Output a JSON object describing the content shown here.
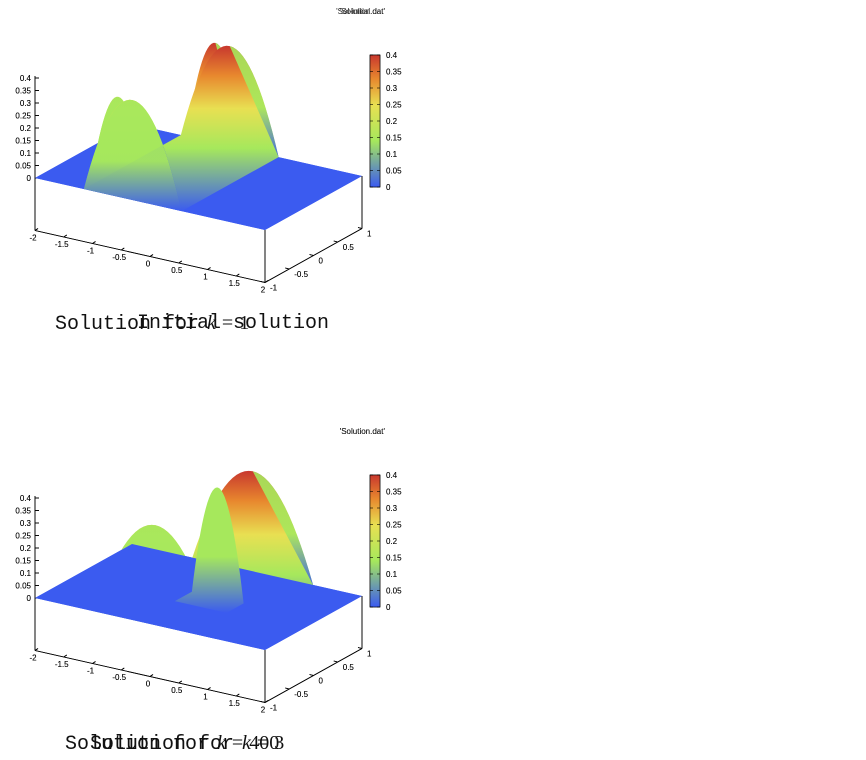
{
  "colors": {
    "blue": "#3b5bf0",
    "green": "#a6e85c",
    "yellow": "#e8e052",
    "orange": "#e8882e",
    "red": "#c8382e",
    "axis": "#000000"
  },
  "colorbar_ticks": [
    "0.4",
    "0.35",
    "0.3",
    "0.25",
    "0.2",
    "0.15",
    "0.1",
    "0.05",
    "0"
  ],
  "z_ticks": [
    "0.4",
    "0.35",
    "0.3",
    "0.25",
    "0.2",
    "0.15",
    "0.1",
    "0.05",
    "0"
  ],
  "x_ticks": [
    "-2",
    "-1.5",
    "-1",
    "-0.5",
    "0",
    "0.5",
    "1",
    "1.5",
    "2"
  ],
  "y_ticks": [
    "-1",
    "-0.5",
    "0",
    "0.5",
    "1"
  ],
  "chart_data": [
    {
      "type": "surface",
      "file_label": "'Sol-initial.dat'",
      "caption_text": "Initial solution",
      "caption_var": "",
      "caption_eq": "",
      "caption_value": "",
      "x_range": [
        -2,
        2
      ],
      "y_range": [
        -1,
        1
      ],
      "zlim": [
        0,
        0.4
      ],
      "colorbar_range": [
        0,
        0.4
      ],
      "hump": {
        "shape": "ridge",
        "x_center": -0.55,
        "half_width": 0.5,
        "peak": 0.4
      }
    },
    {
      "type": "surface",
      "file_label": "'Solution.dat'",
      "caption_text": "Solution for",
      "caption_var": "k",
      "caption_eq": "=",
      "caption_value": "1",
      "x_range": [
        -2,
        2
      ],
      "y_range": [
        -1,
        1
      ],
      "zlim": [
        0,
        0.4
      ],
      "colorbar_range": [
        0,
        0.4
      ],
      "hump": {
        "shape": "ridge",
        "x_center": -0.3,
        "half_width": 0.85,
        "peak": 0.4
      }
    },
    {
      "type": "surface",
      "file_label": "'Solution.dat'",
      "caption_text": "Solution for",
      "caption_var": "k",
      "caption_eq": "=",
      "caption_value": "3",
      "x_range": [
        -2,
        2
      ],
      "y_range": [
        -1,
        1
      ],
      "zlim": [
        0,
        0.4
      ],
      "colorbar_range": [
        0,
        0.4
      ],
      "hump": {
        "shape": "ridge",
        "x_center": 0.1,
        "half_width": 1.05,
        "peak": 0.4
      }
    },
    {
      "type": "surface",
      "file_label": "'Solution.dat'",
      "caption_text": "Solution for",
      "caption_var": "k",
      "caption_eq": "=",
      "caption_value": "400",
      "x_range": [
        -2,
        2
      ],
      "y_range": [
        -1,
        1
      ],
      "zlim": [
        0,
        0.4
      ],
      "colorbar_range": [
        0,
        0.4
      ],
      "hump": {
        "shape": "dome",
        "x_center": 0.25,
        "half_width": 0.45,
        "peak": 0.22
      }
    }
  ]
}
